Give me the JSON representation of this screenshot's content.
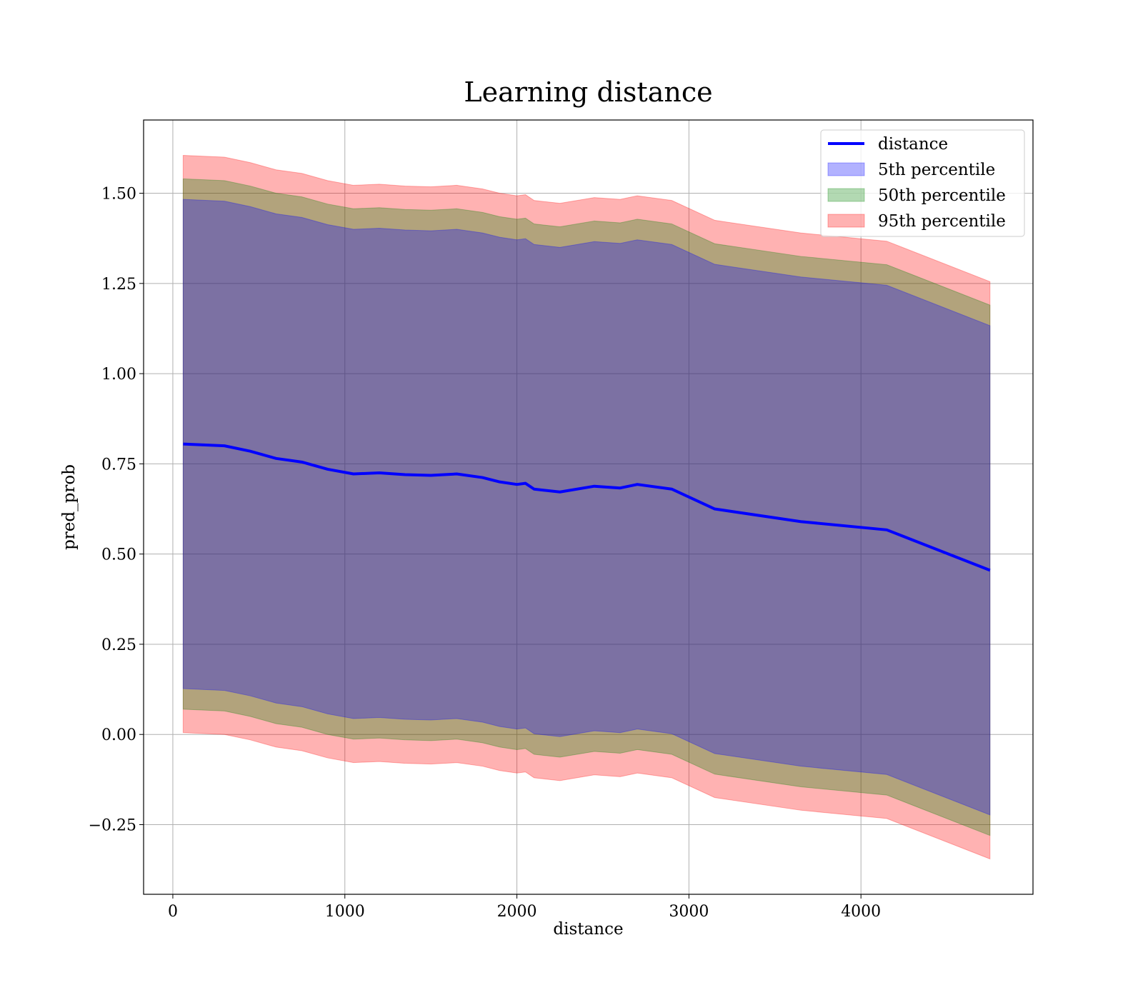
{
  "chart_data": {
    "type": "line",
    "title": "Learning distance",
    "xlabel": "distance",
    "ylabel": "pred_prob",
    "xlim": [
      -170,
      5000
    ],
    "ylim": [
      -0.443,
      1.703
    ],
    "xticks": [
      0,
      1000,
      2000,
      3000,
      4000
    ],
    "yticks": [
      -0.25,
      0.0,
      0.25,
      0.5,
      0.75,
      1.0,
      1.25,
      1.5
    ],
    "xtick_labels": [
      "0",
      "1000",
      "2000",
      "3000",
      "4000"
    ],
    "ytick_labels": [
      "−0.25",
      "0.00",
      "0.25",
      "0.50",
      "0.75",
      "1.00",
      "1.25",
      "1.50"
    ],
    "grid": true,
    "legend_position": "upper right",
    "x": [
      60,
      300,
      450,
      600,
      750,
      900,
      1050,
      1200,
      1350,
      1500,
      1650,
      1800,
      1900,
      2000,
      2050,
      2100,
      2250,
      2450,
      2600,
      2700,
      2900,
      3150,
      3650,
      4150,
      4750
    ],
    "series": [
      {
        "name": "distance",
        "kind": "line",
        "color": "#0000ff",
        "values": [
          0.805,
          0.8,
          0.785,
          0.765,
          0.755,
          0.735,
          0.722,
          0.725,
          0.72,
          0.718,
          0.722,
          0.712,
          0.7,
          0.693,
          0.696,
          0.68,
          0.672,
          0.688,
          0.683,
          0.693,
          0.68,
          0.625,
          0.59,
          0.567,
          0.455
        ]
      },
      {
        "name": "5th percentile",
        "kind": "band",
        "color": "#0000ff",
        "lower": [
          0.127,
          0.122,
          0.107,
          0.087,
          0.077,
          0.057,
          0.044,
          0.047,
          0.042,
          0.04,
          0.044,
          0.034,
          0.022,
          0.015,
          0.018,
          0.002,
          -0.006,
          0.01,
          0.005,
          0.015,
          0.002,
          -0.053,
          -0.088,
          -0.111,
          -0.223
        ],
        "upper": [
          1.483,
          1.478,
          1.463,
          1.443,
          1.433,
          1.413,
          1.4,
          1.403,
          1.398,
          1.396,
          1.4,
          1.39,
          1.378,
          1.371,
          1.374,
          1.358,
          1.35,
          1.366,
          1.361,
          1.371,
          1.358,
          1.303,
          1.268,
          1.245,
          1.133
        ]
      },
      {
        "name": "50th percentile",
        "kind": "band",
        "color": "#008000",
        "lower": [
          0.07,
          0.065,
          0.05,
          0.03,
          0.02,
          0.0,
          -0.013,
          -0.01,
          -0.015,
          -0.017,
          -0.013,
          -0.023,
          -0.035,
          -0.042,
          -0.039,
          -0.055,
          -0.063,
          -0.047,
          -0.052,
          -0.042,
          -0.055,
          -0.11,
          -0.145,
          -0.168,
          -0.28
        ],
        "upper": [
          1.54,
          1.535,
          1.52,
          1.5,
          1.49,
          1.47,
          1.457,
          1.46,
          1.455,
          1.453,
          1.457,
          1.447,
          1.435,
          1.428,
          1.431,
          1.415,
          1.407,
          1.423,
          1.418,
          1.428,
          1.415,
          1.36,
          1.325,
          1.302,
          1.19
        ]
      },
      {
        "name": "95th percentile",
        "kind": "band",
        "color": "#ff0000",
        "lower": [
          0.005,
          0.0,
          -0.015,
          -0.035,
          -0.045,
          -0.065,
          -0.078,
          -0.075,
          -0.08,
          -0.082,
          -0.078,
          -0.088,
          -0.1,
          -0.107,
          -0.104,
          -0.12,
          -0.128,
          -0.112,
          -0.117,
          -0.107,
          -0.12,
          -0.175,
          -0.21,
          -0.233,
          -0.345
        ],
        "upper": [
          1.605,
          1.6,
          1.585,
          1.565,
          1.555,
          1.535,
          1.522,
          1.525,
          1.52,
          1.518,
          1.522,
          1.512,
          1.5,
          1.493,
          1.496,
          1.48,
          1.472,
          1.488,
          1.483,
          1.493,
          1.48,
          1.425,
          1.39,
          1.367,
          1.255
        ]
      }
    ]
  }
}
